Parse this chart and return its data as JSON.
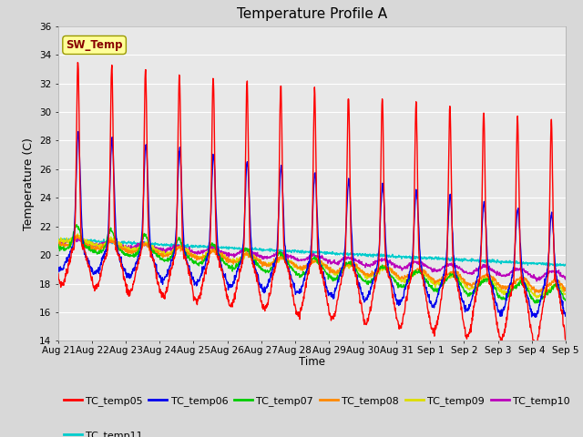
{
  "title": "Temperature Profile A",
  "xlabel": "Time",
  "ylabel": "Temperature (C)",
  "ylim": [
    14,
    36
  ],
  "yticks": [
    14,
    16,
    18,
    20,
    22,
    24,
    26,
    28,
    30,
    32,
    34,
    36
  ],
  "series_colors": {
    "TC_temp05": "#FF0000",
    "TC_temp06": "#0000EE",
    "TC_temp07": "#00CC00",
    "TC_temp08": "#FF8800",
    "TC_temp09": "#DDDD00",
    "TC_temp10": "#BB00BB",
    "TC_temp11": "#00CCCC"
  },
  "legend_labels": [
    "TC_temp05",
    "TC_temp06",
    "TC_temp07",
    "TC_temp08",
    "TC_temp09",
    "TC_temp10",
    "TC_temp11"
  ],
  "sw_temp_box_color": "#FFFF99",
  "sw_temp_text_color": "#880000",
  "background_color": "#D8D8D8",
  "plot_bg_color": "#E8E8E8",
  "xtick_labels": [
    "Aug 21",
    "Aug 22",
    "Aug 23",
    "Aug 24",
    "Aug 25",
    "Aug 26",
    "Aug 27",
    "Aug 28",
    "Aug 29",
    "Aug 30",
    "Aug 31",
    "Sep 1",
    "Sep 2",
    "Sep 3",
    "Sep 4",
    "Sep 5"
  ],
  "linewidth": 1.0
}
